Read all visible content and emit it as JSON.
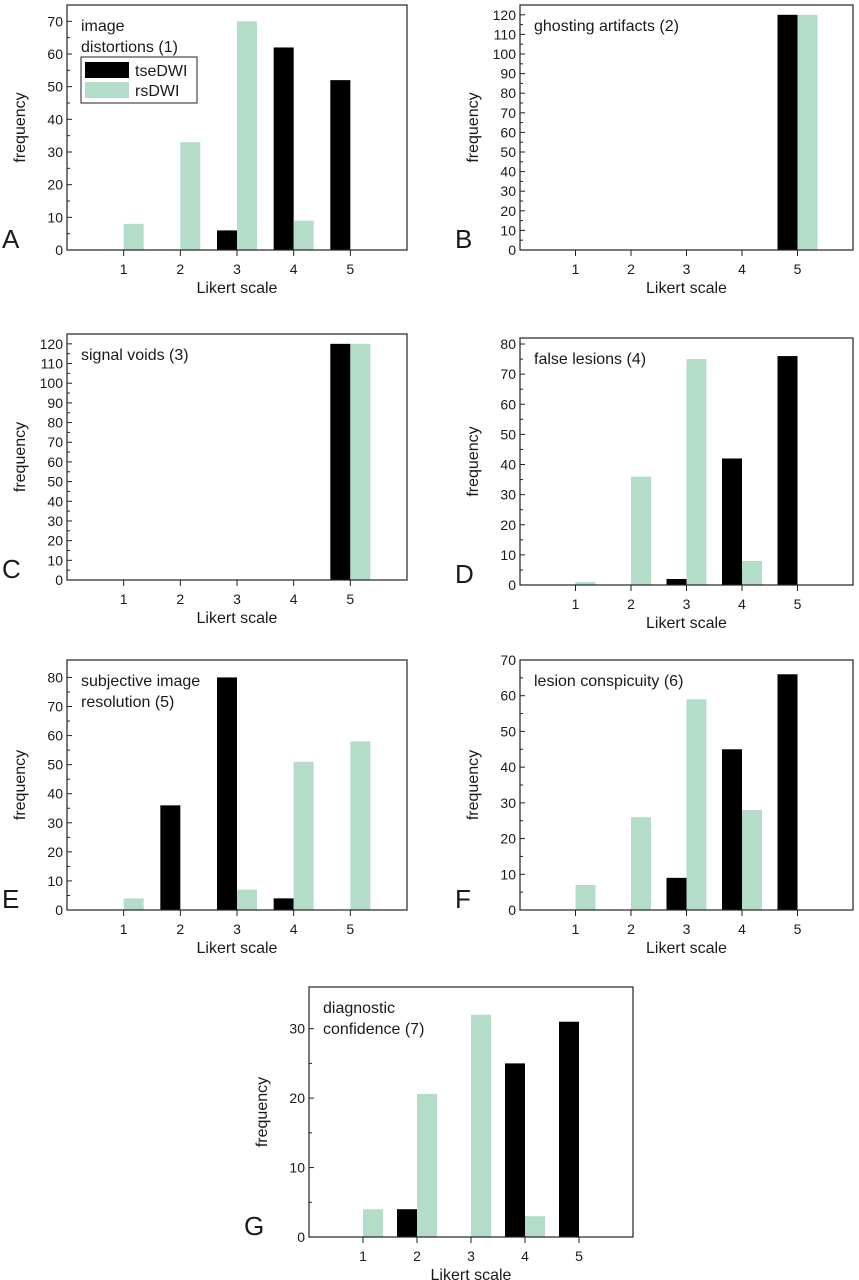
{
  "colors": {
    "tseDWI": "#000000",
    "rsDWI": "#b3dcc9",
    "axis": "#222222"
  },
  "chart_data": [
    {
      "panel": "A",
      "type": "bar",
      "title": [
        "image",
        "distortions (1)"
      ],
      "xlabel": "Likert scale",
      "ylabel": "frequency",
      "categories": [
        "1",
        "2",
        "3",
        "4",
        "5"
      ],
      "ylim": [
        0,
        75
      ],
      "yticks": [
        0,
        10,
        20,
        30,
        40,
        50,
        60,
        70
      ],
      "legend": {
        "placement": "top-left",
        "entries": [
          "tseDWI",
          "rsDWI"
        ]
      },
      "series": [
        {
          "name": "tseDWI",
          "values": [
            0,
            0,
            6,
            62,
            52
          ]
        },
        {
          "name": "rsDWI",
          "values": [
            8,
            33,
            70,
            9,
            0
          ]
        }
      ]
    },
    {
      "panel": "B",
      "type": "bar",
      "title": [
        "ghosting artifacts (2)"
      ],
      "xlabel": "Likert scale",
      "ylabel": "frequency",
      "categories": [
        "1",
        "2",
        "3",
        "4",
        "5"
      ],
      "ylim": [
        0,
        125
      ],
      "yticks": [
        0,
        10,
        20,
        30,
        40,
        50,
        60,
        70,
        80,
        90,
        100,
        110,
        120
      ],
      "series": [
        {
          "name": "tseDWI",
          "values": [
            0,
            0,
            0,
            0,
            120
          ]
        },
        {
          "name": "rsDWI",
          "values": [
            0,
            0,
            0,
            0,
            120
          ]
        }
      ]
    },
    {
      "panel": "C",
      "type": "bar",
      "title": [
        "signal voids (3)"
      ],
      "xlabel": "Likert scale",
      "ylabel": "frequency",
      "categories": [
        "1",
        "2",
        "3",
        "4",
        "5"
      ],
      "ylim": [
        0,
        125
      ],
      "yticks": [
        0,
        10,
        20,
        30,
        40,
        50,
        60,
        70,
        80,
        90,
        100,
        110,
        120
      ],
      "series": [
        {
          "name": "tseDWI",
          "values": [
            0,
            0,
            0,
            0,
            120
          ]
        },
        {
          "name": "rsDWI",
          "values": [
            0,
            0,
            0,
            0,
            120
          ]
        }
      ]
    },
    {
      "panel": "D",
      "type": "bar",
      "title": [
        "false lesions (4)"
      ],
      "xlabel": "Likert scale",
      "ylabel": "frequency",
      "categories": [
        "1",
        "2",
        "3",
        "4",
        "5"
      ],
      "ylim": [
        0,
        82
      ],
      "yticks": [
        0,
        10,
        20,
        30,
        40,
        50,
        60,
        70,
        80
      ],
      "series": [
        {
          "name": "tseDWI",
          "values": [
            0,
            0,
            2,
            42,
            76
          ]
        },
        {
          "name": "rsDWI",
          "values": [
            1,
            36,
            75,
            8,
            0
          ]
        }
      ]
    },
    {
      "panel": "E",
      "type": "bar",
      "title": [
        "subjective image",
        "resolution (5)"
      ],
      "xlabel": "Likert scale",
      "ylabel": "frequency",
      "categories": [
        "1",
        "2",
        "3",
        "4",
        "5"
      ],
      "ylim": [
        0,
        86
      ],
      "yticks": [
        0,
        10,
        20,
        30,
        40,
        50,
        60,
        70,
        80
      ],
      "series": [
        {
          "name": "tseDWI",
          "values": [
            0,
            36,
            80,
            4,
            0
          ]
        },
        {
          "name": "rsDWI",
          "values": [
            4,
            0,
            7,
            51,
            58
          ]
        }
      ]
    },
    {
      "panel": "F",
      "type": "bar",
      "title": [
        "lesion conspicuity (6)"
      ],
      "xlabel": "Likert scale",
      "ylabel": "frequency",
      "categories": [
        "1",
        "2",
        "3",
        "4",
        "5"
      ],
      "ylim": [
        0,
        70
      ],
      "yticks": [
        0,
        10,
        20,
        30,
        40,
        50,
        60,
        70
      ],
      "series": [
        {
          "name": "tseDWI",
          "values": [
            0,
            0,
            9,
            45,
            66
          ]
        },
        {
          "name": "rsDWI",
          "values": [
            7,
            26,
            59,
            28,
            0
          ]
        }
      ]
    },
    {
      "panel": "G",
      "type": "bar",
      "title": [
        "diagnostic",
        "confidence (7)"
      ],
      "xlabel": "Likert scale",
      "ylabel": "frequency",
      "categories": [
        "1",
        "2",
        "3",
        "4",
        "5"
      ],
      "ylim": [
        0,
        36
      ],
      "yticks": [
        0,
        10,
        20,
        30
      ],
      "series": [
        {
          "name": "tseDWI",
          "values": [
            0,
            4,
            0,
            25,
            31
          ]
        },
        {
          "name": "rsDWI",
          "values": [
            4,
            20.6,
            32,
            3,
            0
          ]
        }
      ]
    }
  ]
}
